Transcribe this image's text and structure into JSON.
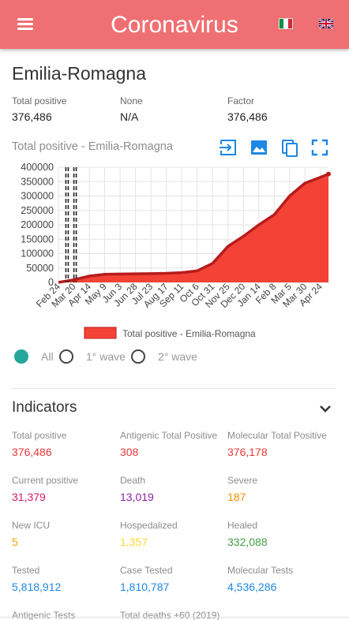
{
  "header": {
    "title": "Coronavirus",
    "menu_icon": "hamburger-menu-icon",
    "flags": [
      "italian-flag-icon",
      "uk-flag-icon"
    ],
    "color": "#ef7073"
  },
  "region": {
    "name": "Emilia-Romagna",
    "stats": [
      {
        "label": "Total positive",
        "value": "376,486"
      },
      {
        "label": "None",
        "value": "N/A"
      },
      {
        "label": "Factor",
        "value": "376,486"
      }
    ]
  },
  "chart_section": {
    "title": "Total positive - Emilia-Romagna",
    "tools": [
      "login-icon",
      "image-icon",
      "copy-icon",
      "fullscreen-icon"
    ]
  },
  "chart_data": {
    "type": "area",
    "x": [
      "2020-02-24",
      "2020-03-20",
      "2020-04-14",
      "2020-05-09",
      "2020-06-03",
      "2020-06-28",
      "2020-07-23",
      "2020-08-17",
      "2020-09-11",
      "2020-10-06",
      "2020-10-31",
      "2020-11-25",
      "2020-12-20",
      "2021-01-14",
      "2021-02-08",
      "2021-03-05",
      "2021-03-30",
      "2021-04-24",
      "2021-05-07"
    ],
    "categories": [
      "Feb 24",
      "Mar 20",
      "Apr 14",
      "May 9",
      "Jun 3",
      "Jun 28",
      "Jul 23",
      "Aug 17",
      "Sep 11",
      "Oct 6",
      "Oct 31",
      "Nov 25",
      "Dec 20",
      "Jan 14",
      "Feb 8",
      "Mar 5",
      "Mar 30",
      "Apr 24"
    ],
    "series": [
      {
        "name": "Total positive - Emilia-Romagna",
        "values": [
          0,
          9000,
          22000,
          28000,
          29000,
          30000,
          30500,
          31500,
          34000,
          40000,
          66000,
          125000,
          160000,
          200000,
          235000,
          300000,
          345000,
          365000,
          376486
        ]
      }
    ],
    "ylim": [
      0,
      400000
    ],
    "yticks": [
      "0",
      "50000",
      "100000",
      "150000",
      "200000",
      "250000",
      "300000",
      "350000",
      "400000"
    ],
    "vertical_markers": [
      "2020-03-09",
      "2020-03-22"
    ],
    "grid": true,
    "legend_position": "bottom",
    "color": "#f44336"
  },
  "wave_filter": {
    "options": [
      {
        "label": "All",
        "selected": true
      },
      {
        "label": "1° wave",
        "selected": false
      },
      {
        "label": "2° wave",
        "selected": false
      }
    ],
    "accent": "#26a69a"
  },
  "indicators": {
    "title": "Indicators",
    "toggle_icon": "chevron-down-icon",
    "items": [
      {
        "label": "Total positive",
        "value": "376,486",
        "color": "#e53935"
      },
      {
        "label": "Antigenic Total Positive",
        "value": "308",
        "color": "#e53935"
      },
      {
        "label": "Molecular Total Positive",
        "value": "376,178",
        "color": "#e53935"
      },
      {
        "label": "Current positive",
        "value": "31,379",
        "color": "#d81b60"
      },
      {
        "label": "Death",
        "value": "13,019",
        "color": "#8e24aa"
      },
      {
        "label": "Severe",
        "value": "187",
        "color": "#fb8c00"
      },
      {
        "label": "New ICU",
        "value": "5",
        "color": "#f4a300"
      },
      {
        "label": "Hospedalized",
        "value": "1,357",
        "color": "#fdd835"
      },
      {
        "label": "Healed",
        "value": "332,088",
        "color": "#43a047"
      },
      {
        "label": "Tested",
        "value": "5,818,912",
        "color": "#1e88e5"
      },
      {
        "label": "Case Tested",
        "value": "1,810,787",
        "color": "#1e88e5"
      },
      {
        "label": "Molecular Tests",
        "value": "4,536,286",
        "color": "#1e88e5"
      },
      {
        "label": "Antigenic Tests",
        "value": "",
        "color": "#1e88e5"
      },
      {
        "label": "Total deaths +60 (2019)",
        "value": "",
        "color": "#8e24aa"
      }
    ]
  }
}
